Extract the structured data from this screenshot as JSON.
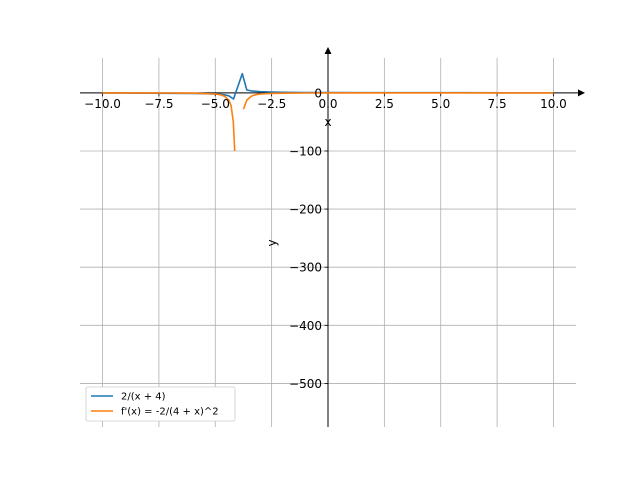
{
  "chart_data": {
    "type": "line",
    "title": "",
    "xlabel": "x",
    "ylabel": "y",
    "xlim": [
      -11,
      11
    ],
    "ylim": [
      -575,
      60
    ],
    "grid": true,
    "legend_position": "lower-left",
    "x_ticks": [
      -10.0,
      -7.5,
      -5.0,
      -2.5,
      0.0,
      2.5,
      5.0,
      7.5,
      10.0
    ],
    "x_tick_labels": [
      "−10.0",
      "−7.5",
      "−5.0",
      "−2.5",
      "0.0",
      "2.5",
      "5.0",
      "7.5",
      "10.0"
    ],
    "y_ticks": [
      0,
      -100,
      -200,
      -300,
      -400,
      -500
    ],
    "y_tick_labels": [
      "0",
      "−100",
      "−200",
      "−300",
      "−400",
      "−500"
    ],
    "series": [
      {
        "name": "2/(x + 4)",
        "color": "#1f77b4",
        "x": [
          -10,
          -9,
          -8,
          -7,
          -6,
          -5,
          -4.8,
          -4.6,
          -4.4,
          -4.19,
          -3.8,
          -3.6,
          -3.4,
          -3,
          -2.5,
          -2,
          -1,
          0,
          2,
          4,
          6,
          8,
          10
        ],
        "y": [
          -0.33,
          -0.4,
          -0.5,
          -0.67,
          -1,
          -2,
          -2.5,
          -3.3,
          -5,
          -10.5,
          33,
          5,
          3.3,
          2,
          1.33,
          1,
          0.67,
          0.5,
          0.33,
          0.25,
          0.2,
          0.17,
          0.14
        ]
      },
      {
        "name": "f'(x) = -2/(4 + x)^2",
        "color": "#ff7f0e",
        "segments": [
          {
            "x": [
              -10,
              -9,
              -8,
              -7,
              -6,
              -5,
              -4.8,
              -4.6,
              -4.4,
              -4.3,
              -4.2,
              -4.14
            ],
            "y": [
              -0.06,
              -0.08,
              -0.13,
              -0.22,
              -0.5,
              -2,
              -3.1,
              -5.6,
              -12.5,
              -22,
              -50,
              -100
            ]
          },
          {
            "x": [
              -3.75,
              -3.6,
              -3.4,
              -3.2,
              -3,
              -2.5,
              -2,
              -1,
              0,
              2,
              4,
              6,
              8,
              10
            ],
            "y": [
              -28,
              -12.5,
              -5.6,
              -3.1,
              -2,
              -0.89,
              -0.5,
              -0.22,
              -0.13,
              -0.06,
              -0.03,
              -0.02,
              -0.01,
              -0.01
            ]
          }
        ]
      }
    ]
  }
}
